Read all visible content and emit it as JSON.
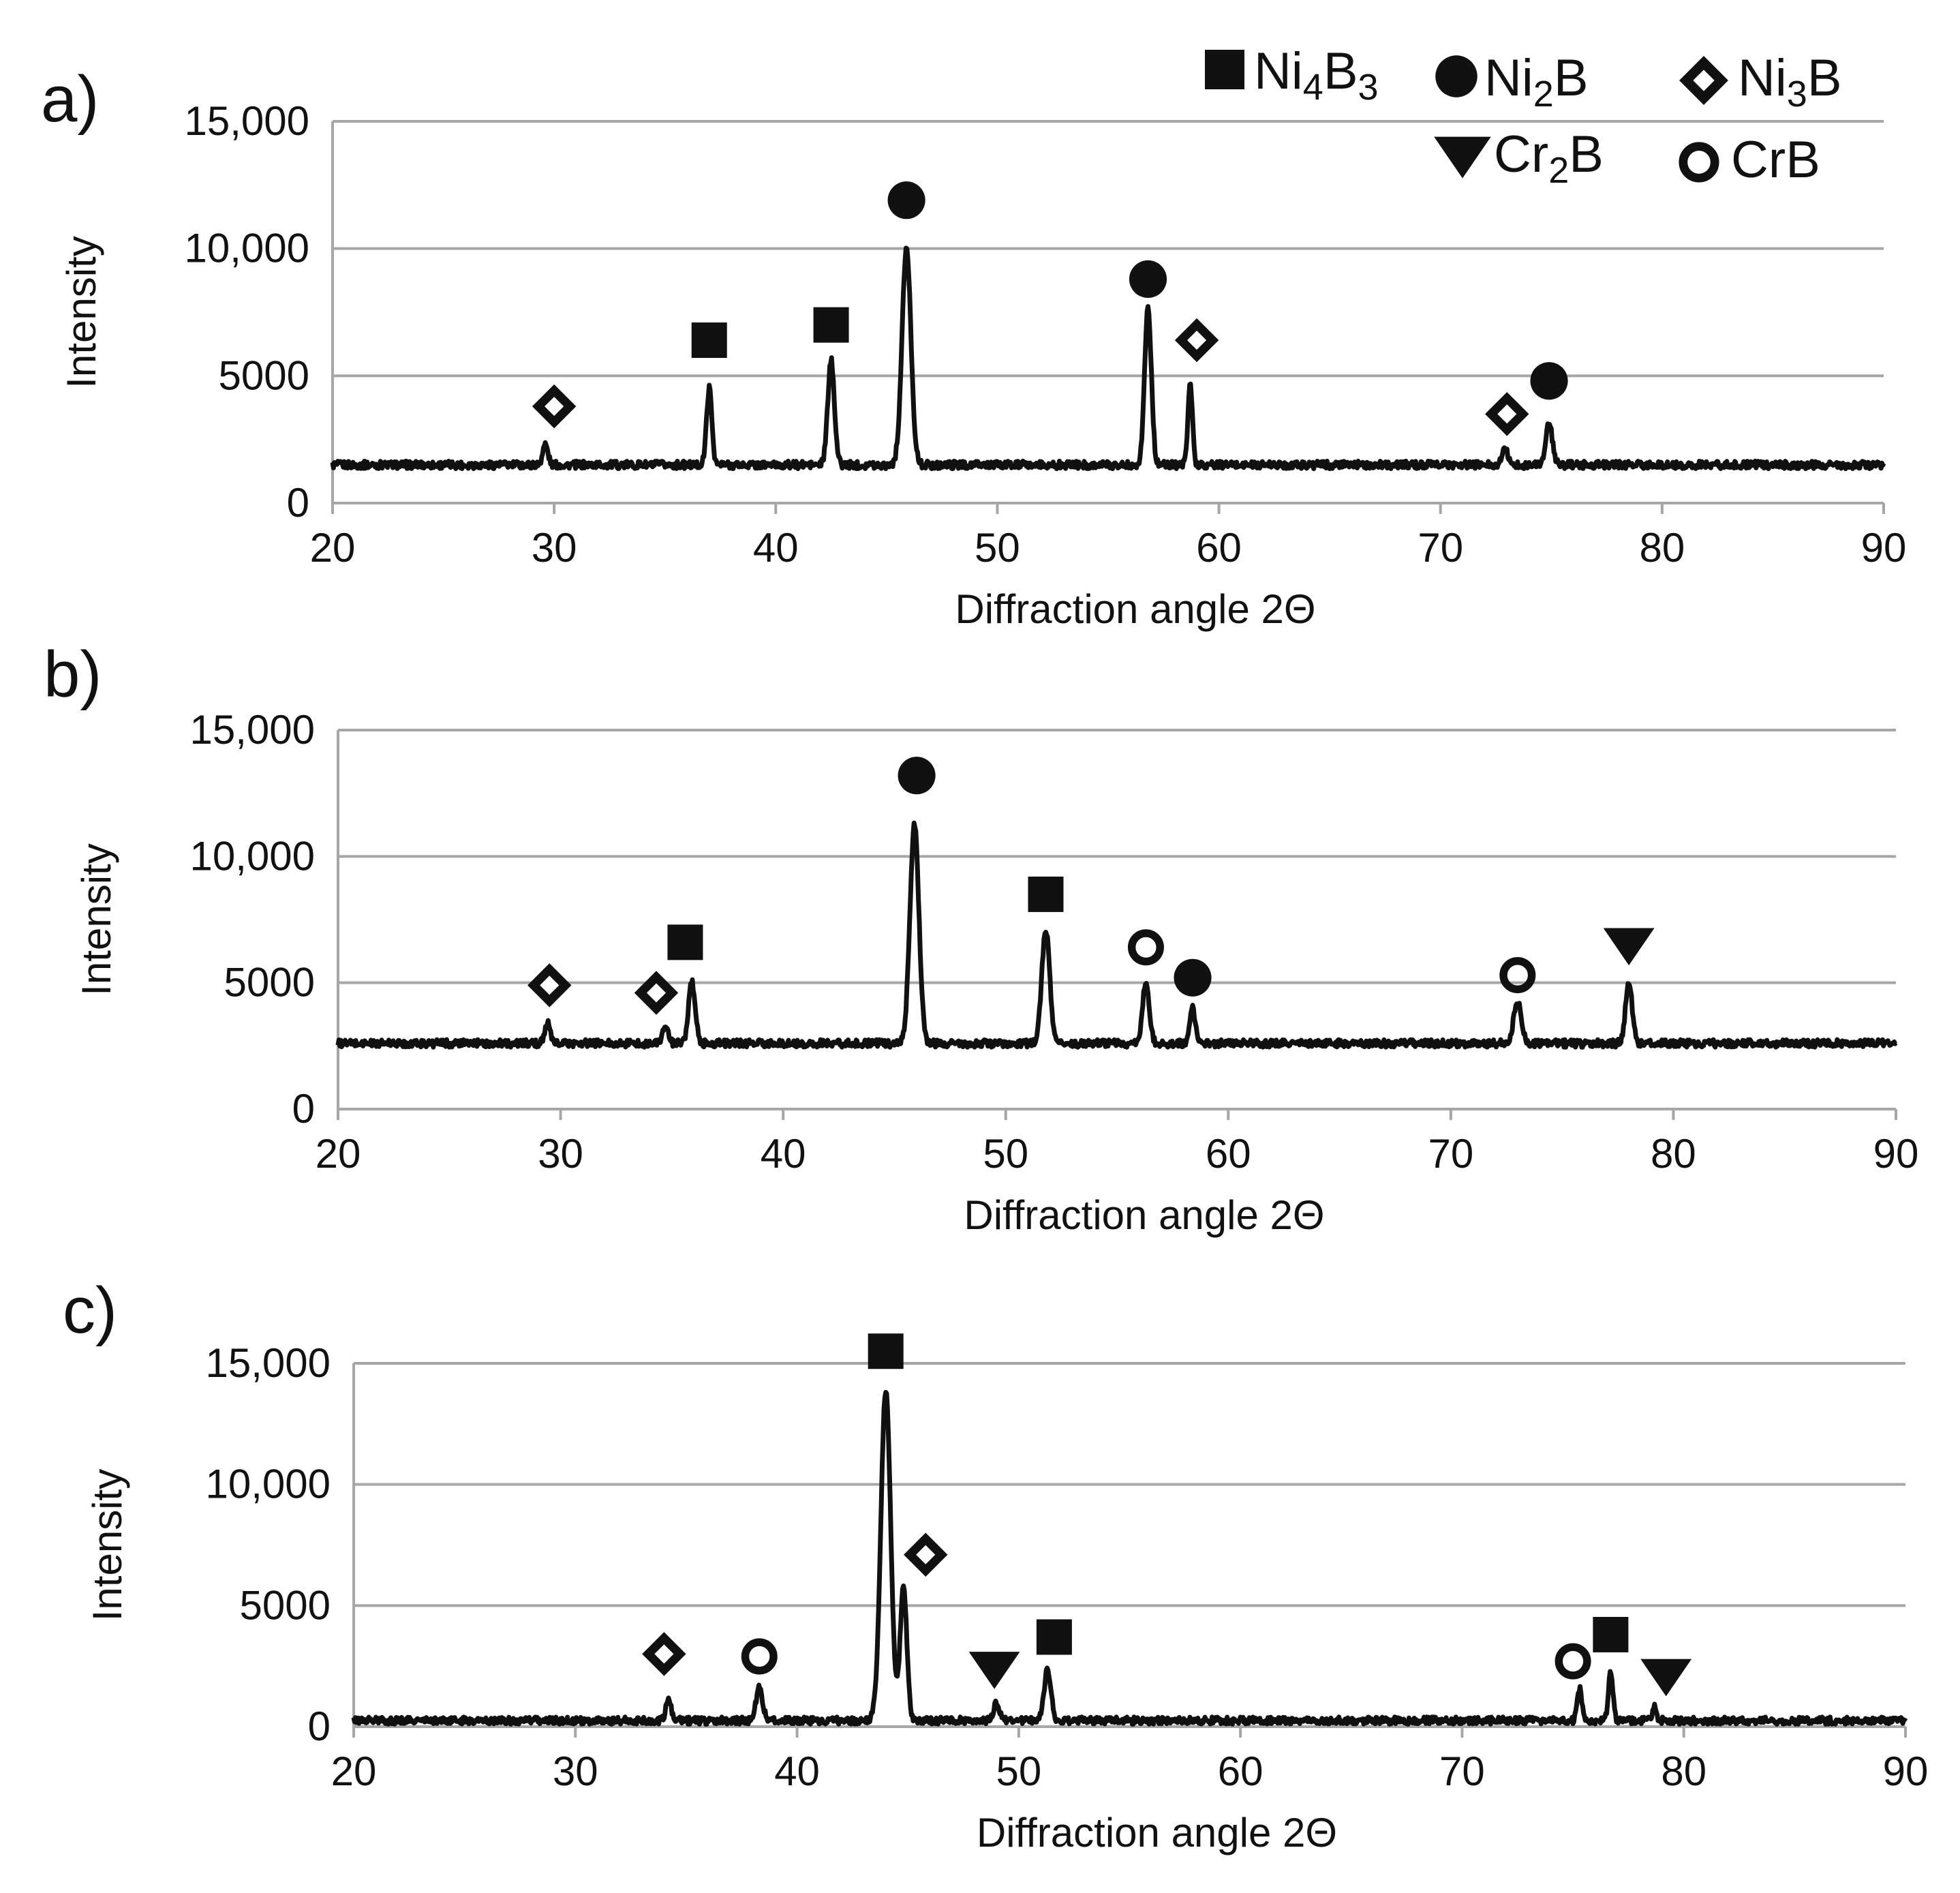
{
  "legend": [
    {
      "phase": "Ni4B3",
      "parts": [
        "Ni",
        "4",
        "B",
        "3"
      ],
      "marker": "square"
    },
    {
      "phase": "Ni2B",
      "parts": [
        "Ni",
        "2",
        "B"
      ],
      "marker": "circle"
    },
    {
      "phase": "Ni3B",
      "parts": [
        "Ni",
        "3",
        "B"
      ],
      "marker": "diamond"
    },
    {
      "phase": "Cr2B",
      "parts": [
        "Cr",
        "2",
        "B"
      ],
      "marker": "triangle"
    },
    {
      "phase": "CrB",
      "parts": [
        "CrB"
      ],
      "marker": "ring"
    }
  ],
  "colors": {
    "trace": "#111111",
    "grid": "#a6a6a6",
    "background": "#ffffff"
  },
  "chart_data": [
    {
      "type": "line",
      "panel": "a)",
      "xlabel": "Diffraction angle 2Θ",
      "ylabel": "Intensity",
      "xlim": [
        20,
        90
      ],
      "ylim": [
        0,
        15000
      ],
      "xticks": [
        20,
        30,
        40,
        50,
        60,
        70,
        80,
        90
      ],
      "yticks": [
        0,
        5000,
        10000,
        15000
      ],
      "ytick_labels": [
        "0",
        "5000",
        "10,000",
        "15,000"
      ],
      "grid": true,
      "baseline": 1500,
      "peaks": [
        {
          "x": 29.6,
          "y": 2300,
          "w": 0.12
        },
        {
          "x": 37.0,
          "y": 4500,
          "w": 0.12
        },
        {
          "x": 42.5,
          "y": 5600,
          "w": 0.15
        },
        {
          "x": 45.9,
          "y": 10000,
          "w": 0.2
        },
        {
          "x": 56.8,
          "y": 7700,
          "w": 0.15
        },
        {
          "x": 58.7,
          "y": 4800,
          "w": 0.1
        },
        {
          "x": 72.9,
          "y": 2200,
          "w": 0.12
        },
        {
          "x": 74.9,
          "y": 3100,
          "w": 0.15
        }
      ],
      "annotations": [
        {
          "marker": "diamond",
          "x": 30.0,
          "y": 3800
        },
        {
          "marker": "square",
          "x": 37.0,
          "y": 6400
        },
        {
          "marker": "square",
          "x": 42.5,
          "y": 7000
        },
        {
          "marker": "circle",
          "x": 45.9,
          "y": 11900
        },
        {
          "marker": "circle",
          "x": 56.8,
          "y": 8800
        },
        {
          "marker": "diamond",
          "x": 59.0,
          "y": 6400
        },
        {
          "marker": "diamond",
          "x": 73.0,
          "y": 3500
        },
        {
          "marker": "circle",
          "x": 74.9,
          "y": 4800
        }
      ]
    },
    {
      "type": "line",
      "panel": "b)",
      "xlabel": "Diffraction angle 2Θ",
      "ylabel": "Intensity",
      "xlim": [
        20,
        90
      ],
      "ylim": [
        0,
        15000
      ],
      "xticks": [
        20,
        30,
        40,
        50,
        60,
        70,
        80,
        90
      ],
      "yticks": [
        0,
        5000,
        10000,
        15000
      ],
      "ytick_labels": [
        "0",
        "5000",
        "10,000",
        "15,000"
      ],
      "grid": true,
      "baseline": 2600,
      "peaks": [
        {
          "x": 29.4,
          "y": 3400,
          "w": 0.12
        },
        {
          "x": 34.7,
          "y": 3300,
          "w": 0.12
        },
        {
          "x": 35.9,
          "y": 5000,
          "w": 0.15
        },
        {
          "x": 45.9,
          "y": 11300,
          "w": 0.2
        },
        {
          "x": 51.8,
          "y": 7100,
          "w": 0.18
        },
        {
          "x": 56.3,
          "y": 5100,
          "w": 0.15
        },
        {
          "x": 58.4,
          "y": 4000,
          "w": 0.12
        },
        {
          "x": 73.0,
          "y": 4200,
          "w": 0.18
        },
        {
          "x": 78.0,
          "y": 5000,
          "w": 0.15
        }
      ],
      "annotations": [
        {
          "marker": "diamond",
          "x": 29.5,
          "y": 4900
        },
        {
          "marker": "diamond",
          "x": 34.3,
          "y": 4600
        },
        {
          "marker": "square",
          "x": 35.6,
          "y": 6600
        },
        {
          "marker": "circle",
          "x": 46.0,
          "y": 13200
        },
        {
          "marker": "square",
          "x": 51.8,
          "y": 8500
        },
        {
          "marker": "ring",
          "x": 56.3,
          "y": 6400
        },
        {
          "marker": "circle",
          "x": 58.4,
          "y": 5200
        },
        {
          "marker": "ring",
          "x": 73.0,
          "y": 5300
        },
        {
          "marker": "triangle",
          "x": 78.0,
          "y": 6500
        }
      ]
    },
    {
      "type": "line",
      "panel": "c)",
      "xlabel": "Diffraction angle 2Θ",
      "ylabel": "Intensity",
      "xlim": [
        20,
        90
      ],
      "ylim": [
        0,
        15000
      ],
      "xticks": [
        20,
        30,
        40,
        50,
        60,
        70,
        80,
        90
      ],
      "yticks": [
        0,
        5000,
        10000,
        15000
      ],
      "ytick_labels": [
        "0",
        "5000",
        "10,000",
        "15,000"
      ],
      "grid": true,
      "baseline": 250,
      "peaks": [
        {
          "x": 34.2,
          "y": 1100,
          "w": 0.12
        },
        {
          "x": 38.3,
          "y": 1600,
          "w": 0.15
        },
        {
          "x": 44.0,
          "y": 13900,
          "w": 0.22
        },
        {
          "x": 44.8,
          "y": 5800,
          "w": 0.15
        },
        {
          "x": 49.0,
          "y": 1000,
          "w": 0.12
        },
        {
          "x": 51.3,
          "y": 2400,
          "w": 0.15
        },
        {
          "x": 75.3,
          "y": 1600,
          "w": 0.1
        },
        {
          "x": 76.7,
          "y": 2300,
          "w": 0.1
        },
        {
          "x": 78.7,
          "y": 900,
          "w": 0.08
        }
      ],
      "annotations": [
        {
          "marker": "diamond",
          "x": 34.0,
          "y": 3000
        },
        {
          "marker": "ring",
          "x": 38.3,
          "y": 2900
        },
        {
          "marker": "square",
          "x": 44.0,
          "y": 15500
        },
        {
          "marker": "diamond",
          "x": 45.8,
          "y": 7100
        },
        {
          "marker": "triangle",
          "x": 48.9,
          "y": 2400
        },
        {
          "marker": "square",
          "x": 51.6,
          "y": 3700
        },
        {
          "marker": "ring",
          "x": 75.0,
          "y": 2700
        },
        {
          "marker": "square",
          "x": 76.7,
          "y": 3800
        },
        {
          "marker": "triangle",
          "x": 79.2,
          "y": 2100
        }
      ]
    }
  ]
}
